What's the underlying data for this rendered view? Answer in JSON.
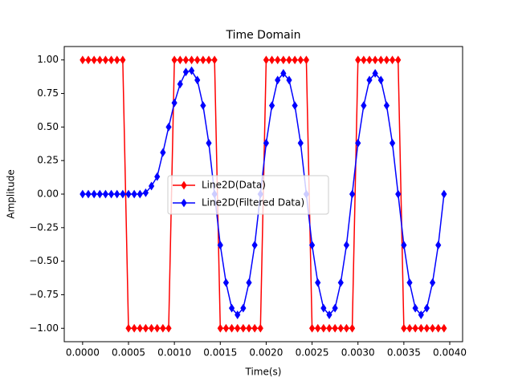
{
  "chart_data": {
    "type": "line",
    "title": "Time Domain",
    "x_label": "Time(s)",
    "y_label": "Amplitude",
    "x": [
      0,
      6.25e-05,
      0.000125,
      0.0001875,
      0.00025,
      0.0003125,
      0.000375,
      0.0004375,
      0.0005,
      0.0005625,
      0.000625,
      0.0006875,
      0.00075,
      0.0008125,
      0.000875,
      0.0009375,
      0.001,
      0.0010625,
      0.001125,
      0.0011875,
      0.00125,
      0.0013125,
      0.001375,
      0.0014375,
      0.0015,
      0.0015625,
      0.001625,
      0.0016875,
      0.00175,
      0.0018125,
      0.001875,
      0.0019375,
      0.002,
      0.0020625,
      0.002125,
      0.0021875,
      0.00225,
      0.0023125,
      0.002375,
      0.0024375,
      0.0025,
      0.0025625,
      0.002625,
      0.0026875,
      0.00275,
      0.0028125,
      0.002875,
      0.0029375,
      0.003,
      0.0030625,
      0.003125,
      0.0031875,
      0.00325,
      0.0033125,
      0.003375,
      0.0034375,
      0.0035,
      0.0035625,
      0.003625,
      0.0036875,
      0.00375,
      0.0038125,
      0.003875,
      0.0039375
    ],
    "series": [
      {
        "name": "Line2D(Data)",
        "color": "#ff0000",
        "values": [
          1,
          1,
          1,
          1,
          1,
          1,
          1,
          1,
          -1,
          -1,
          -1,
          -1,
          -1,
          -1,
          -1,
          -1,
          1,
          1,
          1,
          1,
          1,
          1,
          1,
          1,
          -1,
          -1,
          -1,
          -1,
          -1,
          -1,
          -1,
          -1,
          1,
          1,
          1,
          1,
          1,
          1,
          1,
          1,
          -1,
          -1,
          -1,
          -1,
          -1,
          -1,
          -1,
          -1,
          1,
          1,
          1,
          1,
          1,
          1,
          1,
          1,
          -1,
          -1,
          -1,
          -1,
          -1,
          -1,
          -1,
          -1
        ]
      },
      {
        "name": "Line2D(Filtered Data)",
        "color": "#0000ff",
        "values": [
          0,
          0,
          0,
          0,
          0,
          0,
          0,
          0,
          0,
          0,
          0,
          0.01,
          0.06,
          0.13,
          0.31,
          0.5,
          0.68,
          0.82,
          0.91,
          0.92,
          0.85,
          0.66,
          0.38,
          0,
          -0.38,
          -0.66,
          -0.85,
          -0.9,
          -0.85,
          -0.66,
          -0.38,
          0,
          0.38,
          0.66,
          0.85,
          0.9,
          0.85,
          0.66,
          0.38,
          0,
          -0.38,
          -0.66,
          -0.85,
          -0.9,
          -0.85,
          -0.66,
          -0.38,
          0,
          0.38,
          0.66,
          0.85,
          0.9,
          0.85,
          0.66,
          0.38,
          0,
          -0.38,
          -0.66,
          -0.85,
          -0.9,
          -0.85,
          -0.66,
          -0.38,
          0
        ]
      }
    ],
    "xlim": [
      -0.0002,
      0.00414
    ],
    "ylim": [
      -1.1,
      1.1
    ],
    "xticks": [
      {
        "value": 0,
        "label": "0.0000"
      },
      {
        "value": 0.0005,
        "label": "0.0005"
      },
      {
        "value": 0.001,
        "label": "0.0010"
      },
      {
        "value": 0.0015,
        "label": "0.0015"
      },
      {
        "value": 0.002,
        "label": "0.0020"
      },
      {
        "value": 0.0025,
        "label": "0.0025"
      },
      {
        "value": 0.003,
        "label": "0.0030"
      },
      {
        "value": 0.0035,
        "label": "0.0035"
      },
      {
        "value": 0.004,
        "label": "0.0040"
      }
    ],
    "yticks": [
      {
        "value": -1,
        "label": "−1.00"
      },
      {
        "value": -0.75,
        "label": "−0.75"
      },
      {
        "value": -0.5,
        "label": "−0.50"
      },
      {
        "value": -0.25,
        "label": "−0.25"
      },
      {
        "value": 0,
        "label": "0.00"
      },
      {
        "value": 0.25,
        "label": "0.25"
      },
      {
        "value": 0.5,
        "label": "0.50"
      },
      {
        "value": 0.75,
        "label": "0.75"
      },
      {
        "value": 1,
        "label": "1.00"
      }
    ],
    "legend": "center",
    "grid": false
  }
}
